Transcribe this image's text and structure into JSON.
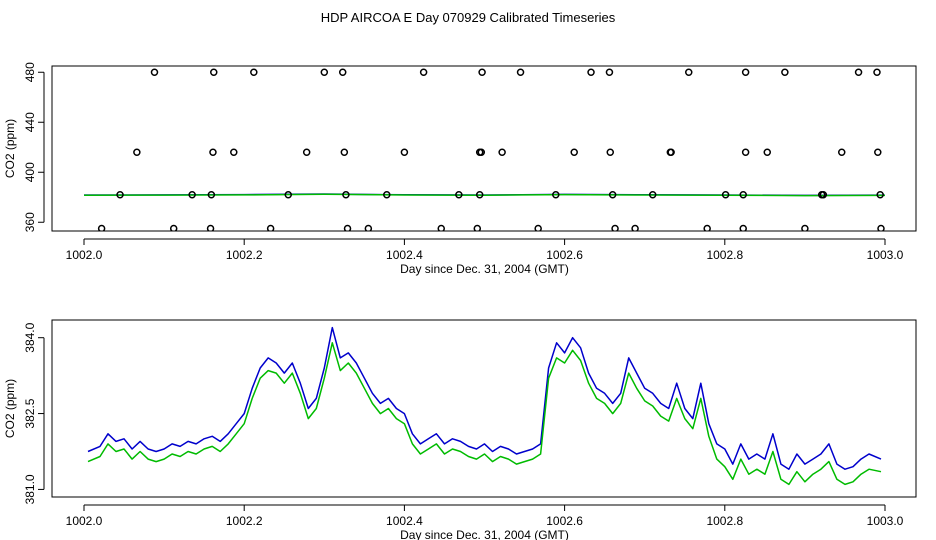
{
  "title": "HDP AIRCOA E  Day 070929  Calibrated Timeseries",
  "colors": {
    "blue": "#0000cc",
    "green": "#00bb00",
    "black": "#000000"
  },
  "chart_data": [
    {
      "type": "scatter+line",
      "xlabel": "Day since Dec. 31, 2004 (GMT)",
      "ylabel": "CO2 (ppm)",
      "xlim": [
        1002.0,
        1003.0
      ],
      "ylim": [
        353,
        485
      ],
      "xticks": [
        1002.0,
        1002.2,
        1002.4,
        1002.6,
        1002.8,
        1003.0
      ],
      "xtick_labels": [
        "1002.0",
        "1002.2",
        "1002.4",
        "1002.6",
        "1002.8",
        "1003.0"
      ],
      "yticks": [
        360,
        400,
        440,
        480
      ],
      "ytick_labels": [
        "360",
        "400",
        "440",
        "480"
      ],
      "series_points": {
        "name": "raw samples",
        "marker": "open circle",
        "points": [
          [
            1002.088,
            480
          ],
          [
            1002.162,
            480
          ],
          [
            1002.212,
            480
          ],
          [
            1002.3,
            480
          ],
          [
            1002.323,
            480
          ],
          [
            1002.424,
            480
          ],
          [
            1002.497,
            480
          ],
          [
            1002.545,
            480
          ],
          [
            1002.633,
            480
          ],
          [
            1002.656,
            480
          ],
          [
            1002.755,
            480
          ],
          [
            1002.826,
            480
          ],
          [
            1002.875,
            480
          ],
          [
            1002.967,
            480
          ],
          [
            1002.99,
            480
          ],
          [
            1002.066,
            416
          ],
          [
            1002.161,
            416
          ],
          [
            1002.187,
            416
          ],
          [
            1002.278,
            416
          ],
          [
            1002.325,
            416
          ],
          [
            1002.4,
            416
          ],
          [
            1002.494,
            416
          ],
          [
            1002.496,
            416
          ],
          [
            1002.522,
            416
          ],
          [
            1002.612,
            416
          ],
          [
            1002.657,
            416
          ],
          [
            1002.732,
            416
          ],
          [
            1002.733,
            416
          ],
          [
            1002.826,
            416
          ],
          [
            1002.853,
            416
          ],
          [
            1002.946,
            416
          ],
          [
            1002.991,
            416
          ],
          [
            1002.045,
            382
          ],
          [
            1002.135,
            382
          ],
          [
            1002.159,
            382
          ],
          [
            1002.255,
            382
          ],
          [
            1002.327,
            382
          ],
          [
            1002.378,
            382
          ],
          [
            1002.468,
            382
          ],
          [
            1002.494,
            382
          ],
          [
            1002.589,
            382
          ],
          [
            1002.66,
            382
          ],
          [
            1002.71,
            382
          ],
          [
            1002.801,
            382
          ],
          [
            1002.823,
            382
          ],
          [
            1002.921,
            382
          ],
          [
            1002.923,
            382
          ],
          [
            1002.994,
            382
          ],
          [
            1002.022,
            355
          ],
          [
            1002.112,
            355
          ],
          [
            1002.158,
            355
          ],
          [
            1002.233,
            355
          ],
          [
            1002.329,
            355
          ],
          [
            1002.355,
            355
          ],
          [
            1002.446,
            355
          ],
          [
            1002.491,
            355
          ],
          [
            1002.567,
            355
          ],
          [
            1002.663,
            355
          ],
          [
            1002.688,
            355
          ],
          [
            1002.778,
            355
          ],
          [
            1002.823,
            355
          ],
          [
            1002.9,
            355
          ],
          [
            1002.995,
            355
          ]
        ]
      },
      "series_lines": [
        {
          "name": "calibrated (blue)",
          "color": "#0000cc",
          "x": [
            1002.0,
            1002.1,
            1002.2,
            1002.3,
            1002.4,
            1002.5,
            1002.6,
            1002.7,
            1002.8,
            1002.9,
            1003.0
          ],
          "values": [
            381.8,
            381.9,
            382.1,
            382.6,
            382.0,
            381.8,
            382.3,
            382.0,
            381.8,
            381.5,
            381.7
          ]
        },
        {
          "name": "calibrated (green)",
          "color": "#00bb00",
          "x": [
            1002.0,
            1002.1,
            1002.2,
            1002.3,
            1002.4,
            1002.5,
            1002.6,
            1002.7,
            1002.8,
            1002.9,
            1003.0
          ],
          "values": [
            381.6,
            381.7,
            381.9,
            382.4,
            381.8,
            381.6,
            382.1,
            381.8,
            381.6,
            381.3,
            381.5
          ]
        }
      ]
    },
    {
      "type": "line",
      "xlabel": "Day since Dec. 31, 2004 (GMT)",
      "ylabel": "CO2 (ppm)",
      "xlim": [
        1002.0,
        1003.0
      ],
      "ylim": [
        380.85,
        384.35
      ],
      "xticks": [
        1002.0,
        1002.2,
        1002.4,
        1002.6,
        1002.8,
        1003.0
      ],
      "xtick_labels": [
        "1002.0",
        "1002.2",
        "1002.4",
        "1002.6",
        "1002.8",
        "1003.0"
      ],
      "yticks": [
        381.0,
        382.5,
        384.0
      ],
      "ytick_labels": [
        "381.0",
        "382.5",
        "384.0"
      ],
      "series": [
        {
          "name": "blue",
          "color": "#0000cc",
          "x": [
            1002.005,
            1002.02,
            1002.03,
            1002.04,
            1002.05,
            1002.06,
            1002.07,
            1002.08,
            1002.09,
            1002.1,
            1002.11,
            1002.12,
            1002.13,
            1002.14,
            1002.15,
            1002.16,
            1002.17,
            1002.18,
            1002.19,
            1002.2,
            1002.21,
            1002.22,
            1002.23,
            1002.24,
            1002.25,
            1002.26,
            1002.27,
            1002.28,
            1002.29,
            1002.3,
            1002.31,
            1002.32,
            1002.33,
            1002.34,
            1002.35,
            1002.36,
            1002.37,
            1002.38,
            1002.39,
            1002.4,
            1002.41,
            1002.42,
            1002.43,
            1002.44,
            1002.45,
            1002.46,
            1002.47,
            1002.48,
            1002.49,
            1002.5,
            1002.51,
            1002.52,
            1002.53,
            1002.54,
            1002.55,
            1002.56,
            1002.57,
            1002.58,
            1002.59,
            1002.6,
            1002.61,
            1002.62,
            1002.63,
            1002.64,
            1002.65,
            1002.66,
            1002.67,
            1002.68,
            1002.69,
            1002.7,
            1002.71,
            1002.72,
            1002.73,
            1002.74,
            1002.75,
            1002.76,
            1002.77,
            1002.78,
            1002.79,
            1002.8,
            1002.81,
            1002.82,
            1002.83,
            1002.84,
            1002.85,
            1002.86,
            1002.87,
            1002.88,
            1002.89,
            1002.9,
            1002.91,
            1002.92,
            1002.93,
            1002.94,
            1002.95,
            1002.96,
            1002.97,
            1002.98,
            1002.995
          ],
          "values": [
            381.75,
            381.85,
            382.1,
            381.95,
            382.0,
            381.8,
            381.95,
            381.8,
            381.75,
            381.8,
            381.9,
            381.85,
            381.95,
            381.9,
            382.0,
            382.05,
            381.95,
            382.1,
            382.3,
            382.5,
            383.0,
            383.4,
            383.6,
            383.5,
            383.3,
            383.5,
            383.1,
            382.6,
            382.8,
            383.4,
            384.2,
            383.6,
            383.7,
            383.5,
            383.2,
            382.9,
            382.7,
            382.8,
            382.6,
            382.5,
            382.1,
            381.9,
            382.0,
            382.1,
            381.9,
            382.0,
            381.95,
            381.85,
            381.8,
            381.9,
            381.75,
            381.85,
            381.8,
            381.7,
            381.75,
            381.8,
            381.9,
            383.4,
            383.9,
            383.7,
            384.0,
            383.8,
            383.3,
            383.0,
            382.9,
            382.7,
            382.9,
            383.6,
            383.3,
            383.0,
            382.9,
            382.7,
            382.6,
            383.1,
            382.6,
            382.4,
            383.1,
            382.3,
            381.9,
            381.8,
            381.5,
            381.9,
            381.6,
            381.7,
            381.6,
            382.1,
            381.5,
            381.4,
            381.7,
            381.5,
            381.6,
            381.7,
            381.9,
            381.5,
            381.4,
            381.45,
            381.6,
            381.7,
            381.6
          ]
        },
        {
          "name": "green",
          "color": "#00bb00",
          "x": [
            1002.005,
            1002.02,
            1002.03,
            1002.04,
            1002.05,
            1002.06,
            1002.07,
            1002.08,
            1002.09,
            1002.1,
            1002.11,
            1002.12,
            1002.13,
            1002.14,
            1002.15,
            1002.16,
            1002.17,
            1002.18,
            1002.19,
            1002.2,
            1002.21,
            1002.22,
            1002.23,
            1002.24,
            1002.25,
            1002.26,
            1002.27,
            1002.28,
            1002.29,
            1002.3,
            1002.31,
            1002.32,
            1002.33,
            1002.34,
            1002.35,
            1002.36,
            1002.37,
            1002.38,
            1002.39,
            1002.4,
            1002.41,
            1002.42,
            1002.43,
            1002.44,
            1002.45,
            1002.46,
            1002.47,
            1002.48,
            1002.49,
            1002.5,
            1002.51,
            1002.52,
            1002.53,
            1002.54,
            1002.55,
            1002.56,
            1002.57,
            1002.58,
            1002.59,
            1002.6,
            1002.61,
            1002.62,
            1002.63,
            1002.64,
            1002.65,
            1002.66,
            1002.67,
            1002.68,
            1002.69,
            1002.7,
            1002.71,
            1002.72,
            1002.73,
            1002.74,
            1002.75,
            1002.76,
            1002.77,
            1002.78,
            1002.79,
            1002.8,
            1002.81,
            1002.82,
            1002.83,
            1002.84,
            1002.85,
            1002.86,
            1002.87,
            1002.88,
            1002.89,
            1002.9,
            1002.91,
            1002.92,
            1002.93,
            1002.94,
            1002.95,
            1002.96,
            1002.97,
            1002.98,
            1002.995
          ],
          "values": [
            381.55,
            381.65,
            381.9,
            381.75,
            381.8,
            381.6,
            381.75,
            381.6,
            381.55,
            381.6,
            381.7,
            381.65,
            381.75,
            381.7,
            381.8,
            381.85,
            381.75,
            381.9,
            382.1,
            382.3,
            382.8,
            383.2,
            383.35,
            383.3,
            383.1,
            383.3,
            382.9,
            382.4,
            382.6,
            383.2,
            383.9,
            383.35,
            383.5,
            383.3,
            383.0,
            382.7,
            382.5,
            382.6,
            382.4,
            382.3,
            381.9,
            381.7,
            381.8,
            381.9,
            381.7,
            381.8,
            381.75,
            381.65,
            381.6,
            381.7,
            381.55,
            381.65,
            381.6,
            381.5,
            381.55,
            381.6,
            381.7,
            383.2,
            383.6,
            383.5,
            383.75,
            383.55,
            383.1,
            382.8,
            382.7,
            382.5,
            382.7,
            383.3,
            383.0,
            382.75,
            382.65,
            382.45,
            382.35,
            382.8,
            382.4,
            382.2,
            382.8,
            382.05,
            381.6,
            381.45,
            381.2,
            381.6,
            381.3,
            381.4,
            381.3,
            381.75,
            381.2,
            381.1,
            381.35,
            381.15,
            381.3,
            381.4,
            381.55,
            381.2,
            381.1,
            381.15,
            381.3,
            381.4,
            381.35
          ]
        }
      ]
    }
  ]
}
